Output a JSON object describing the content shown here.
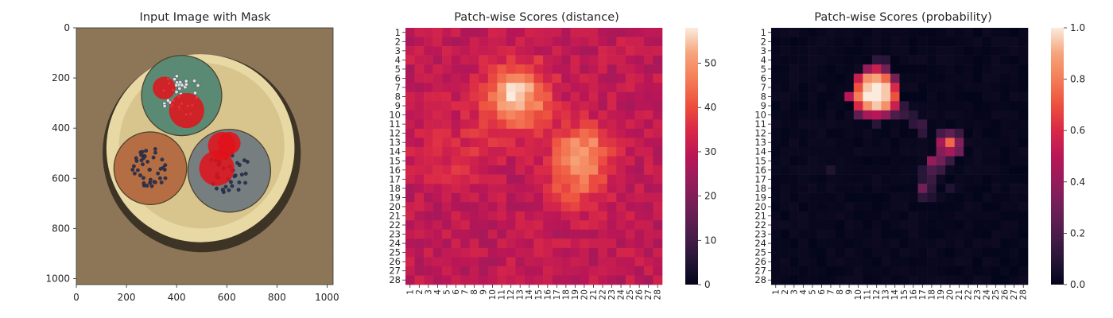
{
  "chart_data": [
    {
      "type": "image",
      "title": "Input Image with Mask",
      "xlim": [
        0,
        1024
      ],
      "ylim": [
        1024,
        0
      ],
      "xticks": [
        "0",
        "200",
        "400",
        "600",
        "800",
        "1000"
      ],
      "yticks": [
        "0",
        "200",
        "400",
        "600",
        "800",
        "1000"
      ],
      "xtick_values": [
        0,
        200,
        400,
        600,
        800,
        1000
      ],
      "ytick_values": [
        0,
        200,
        400,
        600,
        800,
        1000
      ],
      "image_content": {
        "background_color": "#8e7656",
        "ring_color": "#e8d8a4",
        "mask_color": "#e3101a",
        "cables": [
          {
            "color": "#5a8a73",
            "center": [
              420,
              270
            ],
            "radius": 160
          },
          {
            "color": "#b56d44",
            "center": [
              295,
              560
            ],
            "radius": 145
          },
          {
            "color": "#767e80",
            "center": [
              610,
              570
            ],
            "radius": 165
          }
        ],
        "mask_regions": [
          {
            "center": [
              350,
              240
            ],
            "r": 45
          },
          {
            "center": [
              440,
              330
            ],
            "r": 70
          },
          {
            "center": [
              580,
              470
            ],
            "r": 55
          },
          {
            "center": [
              560,
              560
            ],
            "r": 70
          },
          {
            "center": [
              610,
              460
            ],
            "r": 45
          }
        ]
      }
    },
    {
      "type": "heatmap",
      "title": "Patch-wise Scores (distance)",
      "rows": 28,
      "cols": 28,
      "xticks": [
        "1",
        "2",
        "3",
        "4",
        "5",
        "6",
        "7",
        "8",
        "9",
        "10",
        "11",
        "12",
        "13",
        "14",
        "15",
        "16",
        "17",
        "18",
        "19",
        "20",
        "21",
        "22",
        "23",
        "24",
        "25",
        "26",
        "27",
        "28"
      ],
      "yticks": [
        "1",
        "2",
        "3",
        "4",
        "5",
        "6",
        "7",
        "8",
        "9",
        "10",
        "11",
        "12",
        "13",
        "14",
        "15",
        "16",
        "17",
        "18",
        "19",
        "20",
        "21",
        "22",
        "23",
        "24",
        "25",
        "26",
        "27",
        "28"
      ],
      "colorbar": {
        "vmin": 0,
        "vmax": 58,
        "ticks": [
          0,
          10,
          20,
          30,
          40,
          50
        ]
      },
      "baseline": 30,
      "noise": 4,
      "hotspots": [
        {
          "row": 8,
          "col": 12.5,
          "amp": 27,
          "sigma": 2.4
        },
        {
          "row": 13.5,
          "col": 20,
          "amp": 16,
          "sigma": 1.9
        },
        {
          "row": 17,
          "col": 19,
          "amp": 13,
          "sigma": 2.4
        },
        {
          "row": 14,
          "col": 6,
          "amp": 5,
          "sigma": 3
        }
      ],
      "colormap": "rocket"
    },
    {
      "type": "heatmap",
      "title": "Patch-wise Scores (probability)",
      "rows": 28,
      "cols": 28,
      "xticks": [
        "1",
        "2",
        "3",
        "4",
        "5",
        "6",
        "7",
        "8",
        "9",
        "10",
        "11",
        "12",
        "13",
        "14",
        "15",
        "16",
        "17",
        "18",
        "19",
        "20",
        "21",
        "22",
        "23",
        "24",
        "25",
        "26",
        "27",
        "28"
      ],
      "yticks": [
        "1",
        "2",
        "3",
        "4",
        "5",
        "6",
        "7",
        "8",
        "9",
        "10",
        "11",
        "12",
        "13",
        "14",
        "15",
        "16",
        "17",
        "18",
        "19",
        "20",
        "21",
        "22",
        "23",
        "24",
        "25",
        "26",
        "27",
        "28"
      ],
      "colorbar": {
        "vmin": 0,
        "vmax": 1,
        "ticks": [
          0.0,
          0.2,
          0.4,
          0.6,
          0.8,
          1.0
        ],
        "tick_labels": [
          "0.0",
          "0.2",
          "0.4",
          "0.6",
          "0.8",
          "1.0"
        ]
      },
      "values_sparse": [
        {
          "r": 5,
          "c": 11,
          "v": 0.4
        },
        {
          "r": 5,
          "c": 12,
          "v": 0.55
        },
        {
          "r": 5,
          "c": 13,
          "v": 0.3
        },
        {
          "r": 6,
          "c": 10,
          "v": 0.55
        },
        {
          "r": 6,
          "c": 11,
          "v": 0.85
        },
        {
          "r": 6,
          "c": 12,
          "v": 0.9
        },
        {
          "r": 6,
          "c": 13,
          "v": 0.75
        },
        {
          "r": 6,
          "c": 14,
          "v": 0.3
        },
        {
          "r": 7,
          "c": 10,
          "v": 0.7
        },
        {
          "r": 7,
          "c": 11,
          "v": 0.95
        },
        {
          "r": 7,
          "c": 12,
          "v": 1.0
        },
        {
          "r": 7,
          "c": 13,
          "v": 0.95
        },
        {
          "r": 7,
          "c": 14,
          "v": 0.6
        },
        {
          "r": 8,
          "c": 9,
          "v": 0.5
        },
        {
          "r": 8,
          "c": 10,
          "v": 0.8
        },
        {
          "r": 8,
          "c": 11,
          "v": 1.0
        },
        {
          "r": 8,
          "c": 12,
          "v": 1.0
        },
        {
          "r": 8,
          "c": 13,
          "v": 0.95
        },
        {
          "r": 8,
          "c": 14,
          "v": 0.7
        },
        {
          "r": 9,
          "c": 10,
          "v": 0.6
        },
        {
          "r": 9,
          "c": 11,
          "v": 0.85
        },
        {
          "r": 9,
          "c": 12,
          "v": 0.95
        },
        {
          "r": 9,
          "c": 13,
          "v": 0.85
        },
        {
          "r": 9,
          "c": 14,
          "v": 0.55
        },
        {
          "r": 10,
          "c": 10,
          "v": 0.25
        },
        {
          "r": 10,
          "c": 11,
          "v": 0.45
        },
        {
          "r": 10,
          "c": 12,
          "v": 0.5
        },
        {
          "r": 10,
          "c": 13,
          "v": 0.4
        },
        {
          "r": 10,
          "c": 14,
          "v": 0.2
        },
        {
          "r": 9,
          "c": 15,
          "v": 0.12
        },
        {
          "r": 10,
          "c": 15,
          "v": 0.15
        },
        {
          "r": 10,
          "c": 16,
          "v": 0.1
        },
        {
          "r": 11,
          "c": 16,
          "v": 0.12
        },
        {
          "r": 11,
          "c": 17,
          "v": 0.15
        },
        {
          "r": 12,
          "c": 17,
          "v": 0.12
        },
        {
          "r": 12,
          "c": 19,
          "v": 0.18
        },
        {
          "r": 12,
          "c": 20,
          "v": 0.25
        },
        {
          "r": 12,
          "c": 21,
          "v": 0.15
        },
        {
          "r": 13,
          "c": 19,
          "v": 0.45
        },
        {
          "r": 13,
          "c": 20,
          "v": 0.75
        },
        {
          "r": 13,
          "c": 21,
          "v": 0.35
        },
        {
          "r": 14,
          "c": 19,
          "v": 0.35
        },
        {
          "r": 14,
          "c": 20,
          "v": 0.45
        },
        {
          "r": 14,
          "c": 21,
          "v": 0.3
        },
        {
          "r": 15,
          "c": 18,
          "v": 0.4
        },
        {
          "r": 15,
          "c": 19,
          "v": 0.3
        },
        {
          "r": 15,
          "c": 20,
          "v": 0.15
        },
        {
          "r": 16,
          "c": 18,
          "v": 0.2
        },
        {
          "r": 16,
          "c": 19,
          "v": 0.15
        },
        {
          "r": 16,
          "c": 17,
          "v": 0.1
        },
        {
          "r": 17,
          "c": 18,
          "v": 0.15
        },
        {
          "r": 17,
          "c": 17,
          "v": 0.1
        },
        {
          "r": 18,
          "c": 17,
          "v": 0.3
        },
        {
          "r": 18,
          "c": 18,
          "v": 0.12
        },
        {
          "r": 18,
          "c": 20,
          "v": 0.08
        },
        {
          "r": 19,
          "c": 17,
          "v": 0.12
        },
        {
          "r": 19,
          "c": 18,
          "v": 0.08
        },
        {
          "r": 16,
          "c": 7,
          "v": 0.08
        },
        {
          "r": 4,
          "c": 12,
          "v": 0.12
        },
        {
          "r": 4,
          "c": 13,
          "v": 0.1
        },
        {
          "r": 11,
          "c": 12,
          "v": 0.1
        }
      ],
      "colormap": "rocket"
    }
  ]
}
